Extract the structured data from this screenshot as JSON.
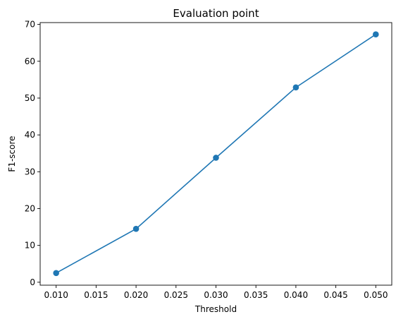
{
  "chart_data": {
    "type": "line",
    "title": "Evaluation point",
    "xlabel": "Threshold",
    "ylabel": "F1-score",
    "x": [
      0.01,
      0.02,
      0.03,
      0.04,
      0.05
    ],
    "series": [
      {
        "values": [
          2.5,
          14.5,
          33.8,
          52.9,
          67.3
        ],
        "color": "#1f77b4",
        "marker": "circle"
      }
    ],
    "xlim": [
      0.008,
      0.052
    ],
    "ylim": [
      -0.8,
      70.5
    ],
    "xticks": [
      "0.010",
      "0.015",
      "0.020",
      "0.025",
      "0.030",
      "0.035",
      "0.040",
      "0.045",
      "0.050"
    ],
    "yticks": [
      "0",
      "10",
      "20",
      "30",
      "40",
      "50",
      "60",
      "70"
    ],
    "grid": false,
    "legend": "none"
  }
}
